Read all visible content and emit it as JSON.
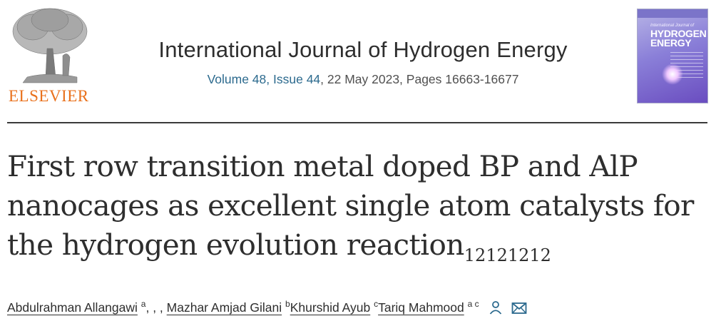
{
  "publisher": {
    "logo_text": "ELSEVIER"
  },
  "journal": {
    "title": "International Journal of Hydrogen Energy",
    "volume": "Volume 48, Issue 44",
    "issue_rest": ", 22 May 2023, Pages 16663-16677"
  },
  "cover": {
    "small_text": "International Journal of",
    "title_line1": "HYDROGEN",
    "title_line2": "ENERGY"
  },
  "article": {
    "title_main": "First row transition metal doped BP and AlP nanocages as excellent single atom catalysts for the hydrogen evolution reaction",
    "title_sub": "12121212"
  },
  "authors": [
    {
      "name": "Abdulrahman Allangawi",
      "sup": "a",
      "after": ", , , "
    },
    {
      "name": "Mazhar Amjad Gilani",
      "sup": "b",
      "after": ""
    },
    {
      "name": "Khurshid Ayub",
      "sup": "c",
      "after": ""
    },
    {
      "name": "Tariq Mahmood",
      "sup": "a c",
      "after": ""
    }
  ],
  "colors": {
    "link": "#2c6a8e",
    "elsevier_orange": "#e9711c"
  },
  "icons": [
    "person-icon",
    "envelope-icon"
  ]
}
